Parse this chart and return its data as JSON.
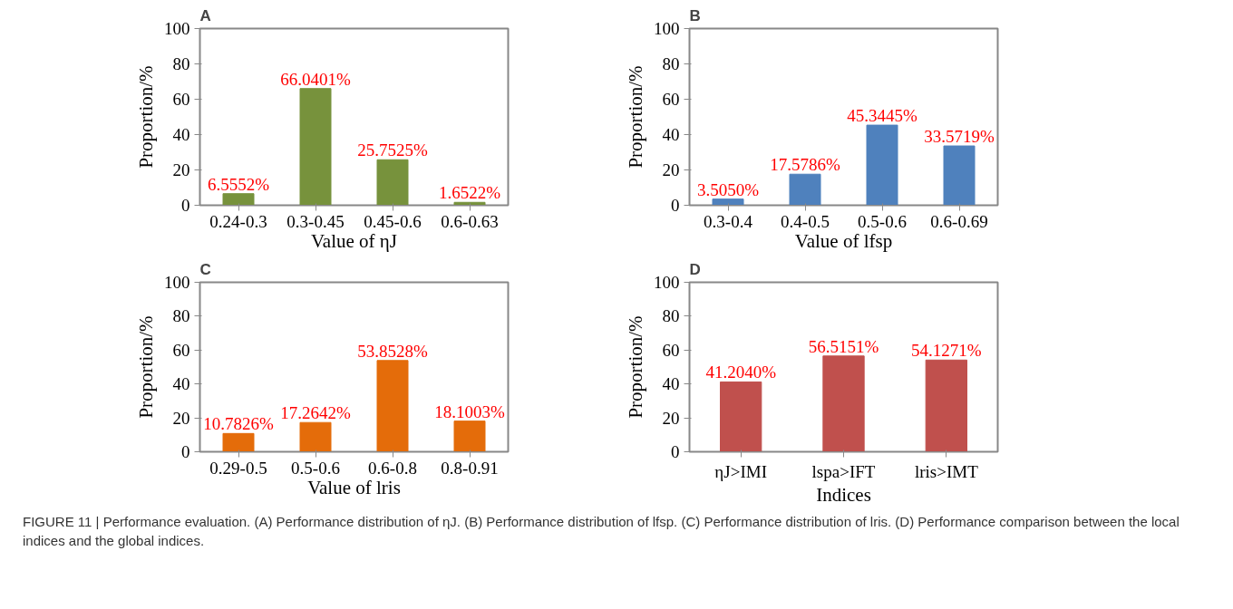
{
  "chart_data": [
    {
      "type": "bar",
      "title": "A",
      "categories": [
        "0.24-0.3",
        "0.3-0.45",
        "0.45-0.6",
        "0.6-0.63"
      ],
      "values": [
        6.5552,
        66.0401,
        25.7525,
        1.6522
      ],
      "value_labels": [
        "6.5552%",
        "66.0401%",
        "25.7525%",
        "1.6522%"
      ],
      "color": "#77923c",
      "xlabel": "Value of ηJ",
      "ylabel": "Proportion/%",
      "ylim": [
        0,
        100
      ],
      "yticks": [
        0,
        20,
        40,
        60,
        80,
        100
      ],
      "grid": false
    },
    {
      "type": "bar",
      "title": "B",
      "categories": [
        "0.3-0.4",
        "0.4-0.5",
        "0.5-0.6",
        "0.6-0.69"
      ],
      "values": [
        3.505,
        17.5786,
        45.3445,
        33.5719
      ],
      "value_labels": [
        "3.5050%",
        "17.5786%",
        "45.3445%",
        "33.5719%"
      ],
      "color": "#4f81bd",
      "xlabel": "Value of lfsp",
      "ylabel": "Proportion/%",
      "ylim": [
        0,
        100
      ],
      "yticks": [
        0,
        20,
        40,
        60,
        80,
        100
      ],
      "grid": false
    },
    {
      "type": "bar",
      "title": "C",
      "categories": [
        "0.29-0.5",
        "0.5-0.6",
        "0.6-0.8",
        "0.8-0.91"
      ],
      "values": [
        10.7826,
        17.2642,
        53.8528,
        18.1003
      ],
      "value_labels": [
        "10.7826%",
        "17.2642%",
        "53.8528%",
        "18.1003%"
      ],
      "color": "#e46c0a",
      "xlabel": "Value of lris",
      "ylabel": "Proportion/%",
      "ylim": [
        0,
        100
      ],
      "yticks": [
        0,
        20,
        40,
        60,
        80,
        100
      ],
      "grid": false
    },
    {
      "type": "bar",
      "title": "D",
      "categories": [
        "ηJ>IMI",
        "lspa>IFT",
        "lris>IMT"
      ],
      "values": [
        41.204,
        56.5151,
        54.1271
      ],
      "value_labels": [
        "41.2040%",
        "56.5151%",
        "54.1271%"
      ],
      "color": "#c0504d",
      "xlabel": "Indices",
      "ylabel": "Proportion/%",
      "ylim": [
        0,
        100
      ],
      "yticks": [
        0,
        20,
        40,
        60,
        80,
        100
      ],
      "grid": false,
      "annotations": [
        "FIGURE 11 | Performance evaluation. (A) Performance distribution of ηJ. (B) Performance distribution of lfsp. (C) Performance distribution of lris. (D) Performance comparison between the local indices and the global indices."
      ]
    }
  ]
}
